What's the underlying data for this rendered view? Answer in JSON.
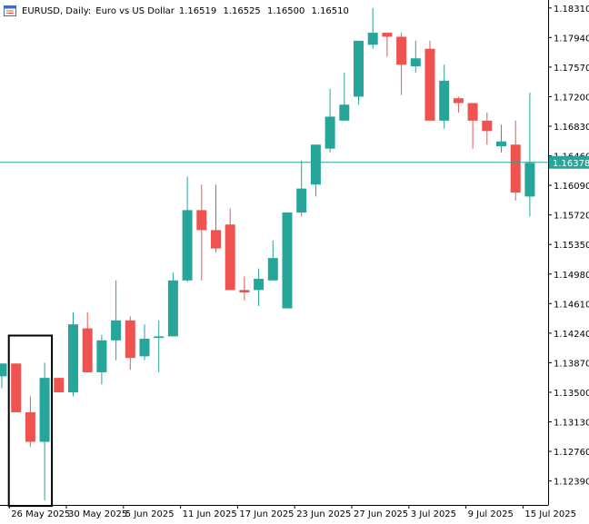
{
  "header": {
    "symbol": "EURUSD, Daily:",
    "description": "Euro vs US Dollar",
    "ohlc": [
      "1.16519",
      "1.16525",
      "1.16500",
      "1.16510"
    ]
  },
  "current_price_label": "1.16378",
  "colors": {
    "bull": "#26a69a",
    "bear": "#ef5350",
    "price_line": "#26a69a",
    "axis": "#000000",
    "highlight_box": "#000000"
  },
  "chart_data": {
    "type": "candlestick",
    "symbol": "EURUSD",
    "timeframe": "Daily",
    "y_ticks": [
      1.1831,
      1.1794,
      1.1757,
      1.172,
      1.1683,
      1.1646,
      1.1609,
      1.1572,
      1.1535,
      1.1498,
      1.1461,
      1.1424,
      1.1387,
      1.135,
      1.1313,
      1.1276,
      1.1239
    ],
    "y_tick_labels": [
      "1.18310",
      "1.17940",
      "1.17570",
      "1.17200",
      "1.16830",
      "1.16460",
      "1.16090",
      "1.15720",
      "1.15350",
      "1.14980",
      "1.14610",
      "1.14240",
      "1.13870",
      "1.13500",
      "1.13130",
      "1.12760",
      "1.12390"
    ],
    "ylim": [
      1.1209,
      1.1841
    ],
    "x_labels": [
      {
        "index": 1,
        "label": "26 May 2025"
      },
      {
        "index": 5,
        "label": "30 May 2025"
      },
      {
        "index": 9,
        "label": "5 Jun 2025"
      },
      {
        "index": 13,
        "label": "11 Jun 2025"
      },
      {
        "index": 17,
        "label": "17 Jun 2025"
      },
      {
        "index": 21,
        "label": "23 Jun 2025"
      },
      {
        "index": 25,
        "label": "27 Jun 2025"
      },
      {
        "index": 29,
        "label": "3 Jul 2025"
      },
      {
        "index": 33,
        "label": "9 Jul 2025"
      },
      {
        "index": 37,
        "label": "15 Jul 2025"
      }
    ],
    "current_price": 1.16378,
    "highlight_range": {
      "from_index": 1,
      "to_index": 3,
      "high": 1.1421,
      "low": 1.121
    },
    "candles": [
      {
        "o": 1.137,
        "h": 1.1386,
        "l": 1.1355,
        "c": 1.1386
      },
      {
        "o": 1.1386,
        "h": 1.1386,
        "l": 1.1325,
        "c": 1.1325
      },
      {
        "o": 1.1325,
        "h": 1.1345,
        "l": 1.1282,
        "c": 1.1288
      },
      {
        "o": 1.1288,
        "h": 1.1387,
        "l": 1.1215,
        "c": 1.1368
      },
      {
        "o": 1.1368,
        "h": 1.1368,
        "l": 1.135,
        "c": 1.135
      },
      {
        "o": 1.135,
        "h": 1.145,
        "l": 1.1345,
        "c": 1.1435
      },
      {
        "o": 1.143,
        "h": 1.145,
        "l": 1.1375,
        "c": 1.1375
      },
      {
        "o": 1.1375,
        "h": 1.1422,
        "l": 1.136,
        "c": 1.1415
      },
      {
        "o": 1.1415,
        "h": 1.149,
        "l": 1.139,
        "c": 1.144
      },
      {
        "o": 1.144,
        "h": 1.1445,
        "l": 1.1378,
        "c": 1.1393
      },
      {
        "o": 1.1395,
        "h": 1.1435,
        "l": 1.139,
        "c": 1.1417
      },
      {
        "o": 1.1418,
        "h": 1.144,
        "l": 1.1375,
        "c": 1.142
      },
      {
        "o": 1.142,
        "h": 1.15,
        "l": 1.142,
        "c": 1.149
      },
      {
        "o": 1.149,
        "h": 1.162,
        "l": 1.1488,
        "c": 1.1578
      },
      {
        "o": 1.1578,
        "h": 1.161,
        "l": 1.149,
        "c": 1.1553
      },
      {
        "o": 1.1553,
        "h": 1.161,
        "l": 1.1525,
        "c": 1.153
      },
      {
        "o": 1.156,
        "h": 1.158,
        "l": 1.1478,
        "c": 1.1478
      },
      {
        "o": 1.1478,
        "h": 1.1495,
        "l": 1.1465,
        "c": 1.1475
      },
      {
        "o": 1.1478,
        "h": 1.1505,
        "l": 1.1458,
        "c": 1.1492
      },
      {
        "o": 1.149,
        "h": 1.154,
        "l": 1.149,
        "c": 1.1518
      },
      {
        "o": 1.1455,
        "h": 1.1575,
        "l": 1.1455,
        "c": 1.1575
      },
      {
        "o": 1.1575,
        "h": 1.164,
        "l": 1.157,
        "c": 1.1605
      },
      {
        "o": 1.161,
        "h": 1.166,
        "l": 1.1595,
        "c": 1.166
      },
      {
        "o": 1.1655,
        "h": 1.173,
        "l": 1.165,
        "c": 1.1695
      },
      {
        "o": 1.169,
        "h": 1.175,
        "l": 1.169,
        "c": 1.171
      },
      {
        "o": 1.172,
        "h": 1.179,
        "l": 1.171,
        "c": 1.179
      },
      {
        "o": 1.1785,
        "h": 1.1831,
        "l": 1.178,
        "c": 1.18
      },
      {
        "o": 1.18,
        "h": 1.18,
        "l": 1.177,
        "c": 1.1795
      },
      {
        "o": 1.1795,
        "h": 1.18,
        "l": 1.1722,
        "c": 1.176
      },
      {
        "o": 1.1758,
        "h": 1.179,
        "l": 1.175,
        "c": 1.1768
      },
      {
        "o": 1.178,
        "h": 1.179,
        "l": 1.169,
        "c": 1.169
      },
      {
        "o": 1.169,
        "h": 1.176,
        "l": 1.168,
        "c": 1.174
      },
      {
        "o": 1.1718,
        "h": 1.172,
        "l": 1.17,
        "c": 1.1712
      },
      {
        "o": 1.1712,
        "h": 1.1712,
        "l": 1.1655,
        "c": 1.169
      },
      {
        "o": 1.169,
        "h": 1.17,
        "l": 1.166,
        "c": 1.1677
      },
      {
        "o": 1.1658,
        "h": 1.1685,
        "l": 1.165,
        "c": 1.1664
      },
      {
        "o": 1.166,
        "h": 1.169,
        "l": 1.159,
        "c": 1.16
      },
      {
        "o": 1.1595,
        "h": 1.1725,
        "l": 1.157,
        "c": 1.1637
      }
    ]
  }
}
